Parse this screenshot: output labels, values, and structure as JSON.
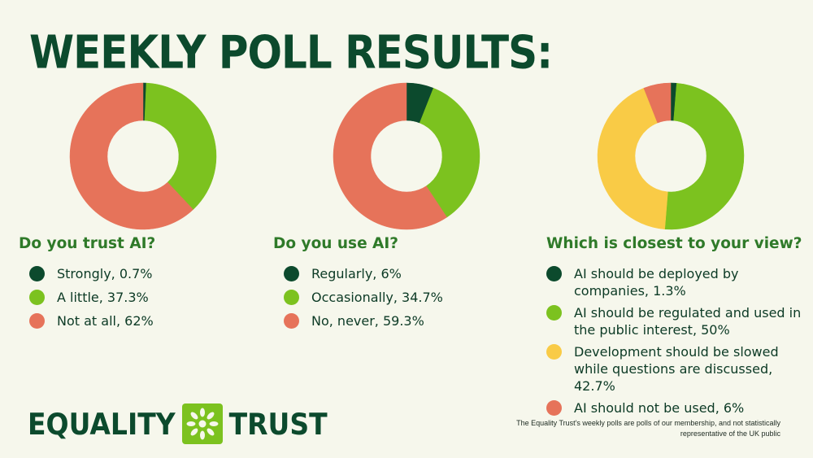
{
  "title": "WEEKLY POLL RESULTS:",
  "colors": {
    "dark_green": "#0c4a2d",
    "light_green": "#7cc21f",
    "yellow": "#f9cb46",
    "coral": "#e6735a",
    "question_green": "#2f7a29",
    "background": "#f6f7ec"
  },
  "chart_data": [
    {
      "type": "pie",
      "title": "Do you trust AI?",
      "categories": [
        "Strongly, 0.7%",
        "A little, 37.3%",
        "Not at all, 62%"
      ],
      "values": [
        0.7,
        37.3,
        62
      ],
      "colors": [
        "#0c4a2d",
        "#7cc21f",
        "#e6735a"
      ]
    },
    {
      "type": "pie",
      "title": "Do you use AI?",
      "categories": [
        "Regularly, 6%",
        "Occasionally, 34.7%",
        "No, never, 59.3%"
      ],
      "values": [
        6,
        34.7,
        59.3
      ],
      "colors": [
        "#0c4a2d",
        "#7cc21f",
        "#e6735a"
      ]
    },
    {
      "type": "pie",
      "title": "Which is closest to your view?",
      "categories": [
        "AI should be deployed by companies, 1.3%",
        "AI should be regulated and used in the public interest, 50%",
        "Development should be slowed while questions are discussed, 42.7%",
        "AI should not be used, 6%"
      ],
      "values": [
        1.3,
        50,
        42.7,
        6
      ],
      "colors": [
        "#0c4a2d",
        "#7cc21f",
        "#f9cb46",
        "#e6735a"
      ]
    }
  ],
  "logo": {
    "left_text": "EQUALITY",
    "right_text": "TRUST",
    "icon": "flower-icon"
  },
  "footnote": "The Equality Trust's weekly polls are polls of our membership, and not statistically representative of the UK public"
}
